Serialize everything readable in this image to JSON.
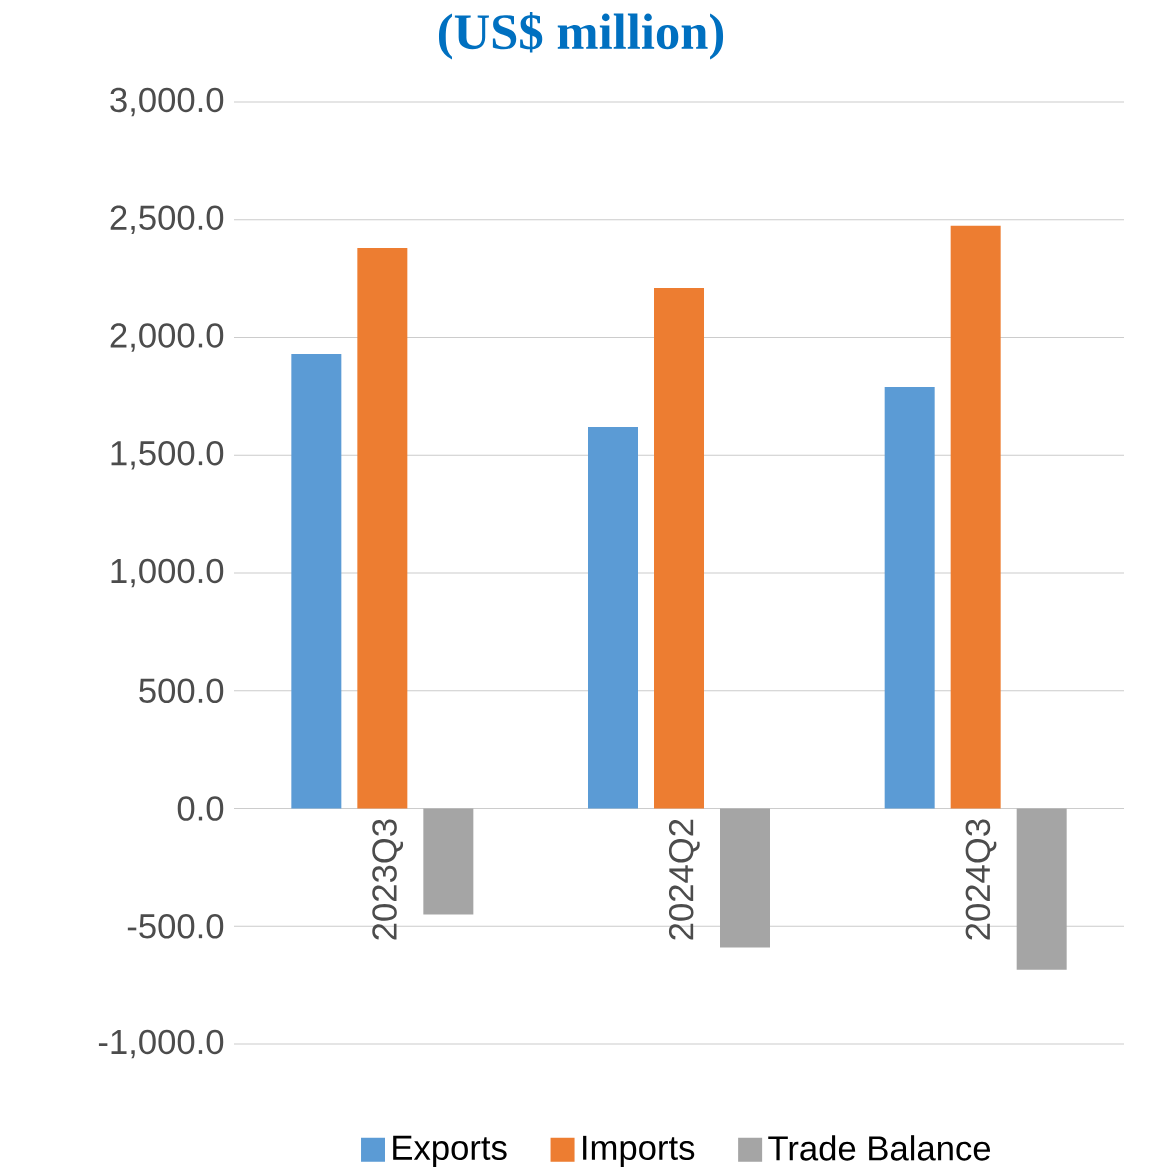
{
  "chart_data": {
    "type": "bar",
    "title": "(US$ million)",
    "categories": [
      "2023Q3",
      "2024Q2",
      "2024Q3"
    ],
    "series": [
      {
        "name": "Exports",
        "color": "#5b9bd5",
        "values": [
          1930,
          1620,
          1790
        ]
      },
      {
        "name": "Imports",
        "color": "#ed7d31",
        "values": [
          2380,
          2210,
          2475
        ]
      },
      {
        "name": "Trade Balance",
        "color": "#a5a5a5",
        "values": [
          -450,
          -590,
          -685
        ]
      }
    ],
    "ylim": [
      -1000,
      3000
    ],
    "yticks": [
      {
        "value": -1000,
        "label": "-1,000.0"
      },
      {
        "value": -500,
        "label": "-500.0"
      },
      {
        "value": 0,
        "label": "0.0"
      },
      {
        "value": 500,
        "label": "500.0"
      },
      {
        "value": 1000,
        "label": "1,000.0"
      },
      {
        "value": 1500,
        "label": "1,500.0"
      },
      {
        "value": 2000,
        "label": "2,000.0"
      },
      {
        "value": 2500,
        "label": "2,500.0"
      },
      {
        "value": 3000,
        "label": "3,000.0"
      }
    ],
    "grid": "y",
    "legend": "bottom"
  }
}
